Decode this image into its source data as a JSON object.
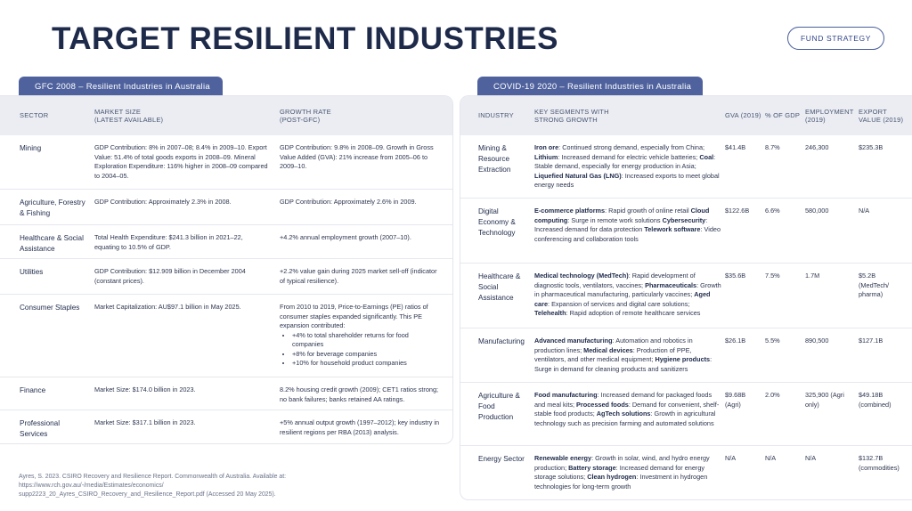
{
  "header": {
    "title": "TARGET RESILIENT INDUSTRIES",
    "fund_button": "FUND STRATEGY"
  },
  "gfc": {
    "tab_label": "GFC 2008 – Resilient Industries in Australia",
    "columns": [
      "SECTOR",
      "MARKET SIZE\n(LATEST AVAILABLE)",
      "GROWTH RATE\n(POST-GFC)"
    ],
    "rows": [
      {
        "sector": "Mining",
        "market": "GDP Contribution: 8% in 2007–08; 8.4% in 2009–10. Export Value: 51.4% of total goods exports in 2008–09. Mineral Exploration Expenditure: 116% higher in 2008–09 compared to 2004–05.",
        "growth": "GDP Contribution: 9.8% in 2008–09. Growth in Gross Value Added (GVA): 21% increase from 2005–06 to 2009–10."
      },
      {
        "sector": "Agriculture, Forestry & Fishing",
        "market": "GDP Contribution: Approximately 2.3% in 2008.",
        "growth": "GDP Contribution: Approximately 2.6% in 2009."
      },
      {
        "sector": "Healthcare & Social Assistance",
        "market": "Total Health Expenditure: $241.3 billion in 2021–22, equating to 10.5% of GDP.",
        "growth": "+4.2% annual employment growth (2007–10)."
      },
      {
        "sector": "Utilities",
        "market": "GDP Contribution: $12.909 billion in December 2004 (constant prices).",
        "growth": "+2.2% value gain during 2025 market sell-off (indicator of typical resilience)."
      },
      {
        "sector": "Consumer Staples",
        "market": "Market Capitalization: AU$97.1 billion in May 2025.",
        "growth": "From 2010 to 2019, Price-to-Earnings (PE) ratios of consumer staples expanded significantly. This PE expansion contributed:",
        "bullets": [
          "+4% to total shareholder returns for food companies",
          "+8% for beverage companies",
          "+10% for household product companies"
        ]
      },
      {
        "sector": "Finance",
        "market": "Market Size: $174.0 billion in 2023.",
        "growth": "8.2% housing credit growth (2009); CET1 ratios strong; no bank failures; banks retained AA ratings."
      },
      {
        "sector": "Professional Services",
        "market": "Market Size: $317.1 billion in 2023.",
        "growth": "+5% annual output growth (1997–2012); key industry in resilient regions per RBA (2013) analysis."
      }
    ]
  },
  "covid": {
    "tab_label": "COVID-19 2020 – Resilient Industries in Australia",
    "columns": [
      "INDUSTRY",
      "KEY SEGMENTS WITH\nSTRONG GROWTH",
      "GVA (2019)",
      "% OF GDP",
      "EMPLOYMENT\n(2019)",
      "EXPORT\nVALUE (2019)"
    ],
    "rows": [
      {
        "industry": "Mining & Resource Extraction",
        "segments": [
          [
            "Iron ore",
            ": Continued strong demand, especially from China; "
          ],
          [
            "Lithium",
            ": Increased demand for electric vehicle batteries; "
          ],
          [
            "Coal",
            ": Stable demand, especially for energy production in Asia; "
          ],
          [
            "Liquefied Natural Gas (LNG)",
            ": Increased exports to meet global energy needs"
          ]
        ],
        "gva": "$41.4B",
        "gdp": "8.7%",
        "employment": "246,300",
        "export": "$235.3B"
      },
      {
        "industry": "Digital Economy & Technology",
        "segments": [
          [
            "E-commerce platforms",
            ": Rapid growth of online retail "
          ],
          [
            "Cloud computing",
            ": Surge in remote work solutions "
          ],
          [
            "Cybersecurity",
            ": Increased demand for data protection "
          ],
          [
            "Telework software",
            ": Video conferencing and collaboration tools"
          ]
        ],
        "gva": "$122.6B",
        "gdp": "6.6%",
        "employment": "580,000",
        "export": "N/A"
      },
      {
        "industry": "Healthcare & Social Assistance",
        "segments": [
          [
            "Medical technology (MedTech)",
            ": Rapid development of diagnostic tools, ventilators, vaccines; "
          ],
          [
            "Pharmaceuticals",
            ": Growth in pharmaceutical manufacturing, particularly vaccines; "
          ],
          [
            "Aged care",
            ": Expansion of services and digital care solutions; "
          ],
          [
            "Telehealth",
            ": Rapid adoption of remote healthcare services"
          ]
        ],
        "gva": "$35.6B",
        "gdp": "7.5%",
        "employment": "1.7M",
        "export": "$5.2B (MedTech/ pharma)"
      },
      {
        "industry": "Manufacturing",
        "segments": [
          [
            "Advanced manufacturing",
            ": Automation and robotics in production lines; "
          ],
          [
            "Medical devices",
            ": Production of PPE, ventilators, and other medical equipment; "
          ],
          [
            "Hygiene products",
            ": Surge in demand for cleaning products and sanitizers"
          ]
        ],
        "gva": "$26.1B",
        "gdp": "5.5%",
        "employment": "890,500",
        "export": "$127.1B"
      },
      {
        "industry": "Agriculture & Food Production",
        "segments": [
          [
            "Food manufacturing",
            ": Increased demand for packaged foods and meal kits; "
          ],
          [
            "Processed foods",
            ": Demand for convenient, shelf-stable food products; "
          ],
          [
            "AgTech solutions",
            ": Growth in agricultural technology such as precision farming and automated solutions"
          ]
        ],
        "gva": "$9.68B (Agri)",
        "gdp": "2.0%",
        "employment": "325,900 (Agri only)",
        "export": "$49.18B (combined)"
      },
      {
        "industry": "Energy Sector",
        "segments": [
          [
            "Renewable energy",
            ": Growth in solar, wind, and hydro energy production; "
          ],
          [
            "Battery storage",
            ": Increased demand for energy storage solutions; "
          ],
          [
            "Clean hydrogen",
            ": Investment in hydrogen technologies for long-term growth"
          ]
        ],
        "gva": "N/A",
        "gdp": "N/A",
        "employment": "N/A",
        "export": "$132.7B (commodities)"
      }
    ]
  },
  "reference": "Ayres, S. 2023. CSIRO Recovery and Resilience Report. Commonwealth of Australia. Available at: https://www.rch.gov.au/-/media/Estimates/economics/ supp2223_20_Ayres_CSIRO_Recovery_and_Resilience_Report.pdf (Accessed 20 May 2025).",
  "colors": {
    "accent": "#4f629d",
    "header_bg": "#ebedf3",
    "title": "#1e2a4a"
  }
}
